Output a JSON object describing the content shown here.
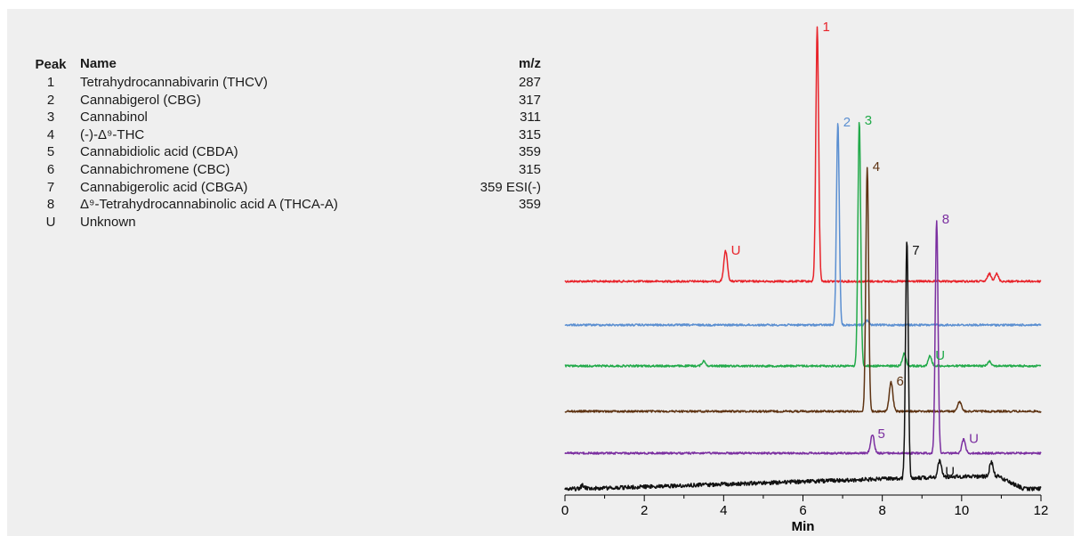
{
  "table": {
    "headers": {
      "peak": "Peak",
      "name": "Name",
      "mz": "m/z"
    },
    "rows": [
      {
        "peak": "1",
        "name": "Tetrahydrocannabivarin (THCV)",
        "mz": "287"
      },
      {
        "peak": "2",
        "name": "Cannabigerol (CBG)",
        "mz": "317"
      },
      {
        "peak": "3",
        "name": "Cannabinol",
        "mz": "311"
      },
      {
        "peak": "4",
        "name": "(-)-Δ⁹-THC",
        "mz": "315"
      },
      {
        "peak": "5",
        "name": "Cannabidiolic acid (CBDA)",
        "mz": "359"
      },
      {
        "peak": "6",
        "name": "Cannabichromene  (CBC)",
        "mz": "315"
      },
      {
        "peak": "7",
        "name": "Cannabigerolic acid (CBGA)",
        "mz": "359 ESI(-)"
      },
      {
        "peak": "8",
        "name": "Δ⁹-Tetrahydrocannabinolic acid A (THCA-A)",
        "mz": "359"
      },
      {
        "peak": "U",
        "name": "Unknown",
        "mz": ""
      }
    ]
  },
  "chart_data": {
    "type": "line",
    "xlabel": "Min",
    "xlim": [
      0,
      12
    ],
    "xticks": [
      "0",
      "2",
      "4",
      "6",
      "8",
      "10",
      "12"
    ],
    "grid": false,
    "legend": "none",
    "series": [
      {
        "color": "#e8232a",
        "peaks": [
          {
            "x": 4.05,
            "height": 0.12,
            "label": "U"
          },
          {
            "x": 6.36,
            "height": 1.0,
            "label": "1"
          },
          {
            "x": 10.7,
            "height": 0.03,
            "label": ""
          },
          {
            "x": 10.88,
            "height": 0.03,
            "label": ""
          }
        ]
      },
      {
        "color": "#5b8fd1",
        "peaks": [
          {
            "x": 6.88,
            "height": 0.9,
            "label": "2"
          },
          {
            "x": 7.62,
            "height": 0.02,
            "label": ""
          }
        ]
      },
      {
        "color": "#22aa4a",
        "peaks": [
          {
            "x": 3.5,
            "height": 0.02,
            "label": ""
          },
          {
            "x": 7.42,
            "height": 1.0,
            "label": "3"
          },
          {
            "x": 8.55,
            "height": 0.05,
            "label": ""
          },
          {
            "x": 9.2,
            "height": 0.04,
            "label": "U"
          },
          {
            "x": 10.7,
            "height": 0.02,
            "label": ""
          }
        ]
      },
      {
        "color": "#5e3312",
        "peaks": [
          {
            "x": 7.62,
            "height": 1.0,
            "label": "4"
          },
          {
            "x": 8.22,
            "height": 0.12,
            "label": "6"
          },
          {
            "x": 9.95,
            "height": 0.04,
            "label": ""
          }
        ]
      },
      {
        "color": "#7b2fa0",
        "peaks": [
          {
            "x": 7.75,
            "height": 0.08,
            "label": "5"
          },
          {
            "x": 9.37,
            "height": 1.0,
            "label": "8"
          },
          {
            "x": 10.05,
            "height": 0.06,
            "label": "U"
          }
        ]
      },
      {
        "color": "#111111",
        "peaks": [
          {
            "x": 0.45,
            "height": 0.015,
            "label": ""
          },
          {
            "x": 8.62,
            "height": 1.0,
            "label": "7"
          },
          {
            "x": 9.45,
            "height": 0.07,
            "label": "U"
          },
          {
            "x": 10.75,
            "height": 0.06,
            "label": ""
          }
        ]
      }
    ]
  }
}
